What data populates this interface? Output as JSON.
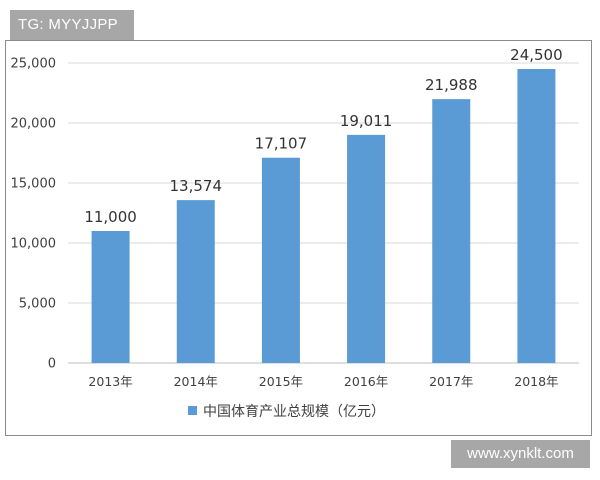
{
  "watermarks": {
    "top_left": "TG: MYYJJPP",
    "bottom_right": "www.xynklt.com"
  },
  "chart_data": {
    "type": "bar",
    "categories": [
      "2013年",
      "2014年",
      "2015年",
      "2016年",
      "2017年",
      "2018年"
    ],
    "series": [
      {
        "name": "中国体育产业总规模（亿元）",
        "values": [
          11000,
          13574,
          17107,
          19011,
          21988,
          24500
        ],
        "labels": [
          "11,000",
          "13,574",
          "17,107",
          "19,011",
          "21,988",
          "24,500"
        ],
        "color": "#5b9bd5"
      }
    ],
    "yticks": [
      0,
      5000,
      10000,
      15000,
      20000,
      25000
    ],
    "ytick_labels": [
      "0",
      "5,000",
      "10,000",
      "15,000",
      "20,000",
      "25,000"
    ],
    "ylim": [
      0,
      25000
    ],
    "grid": true,
    "legend_position": "bottom"
  }
}
